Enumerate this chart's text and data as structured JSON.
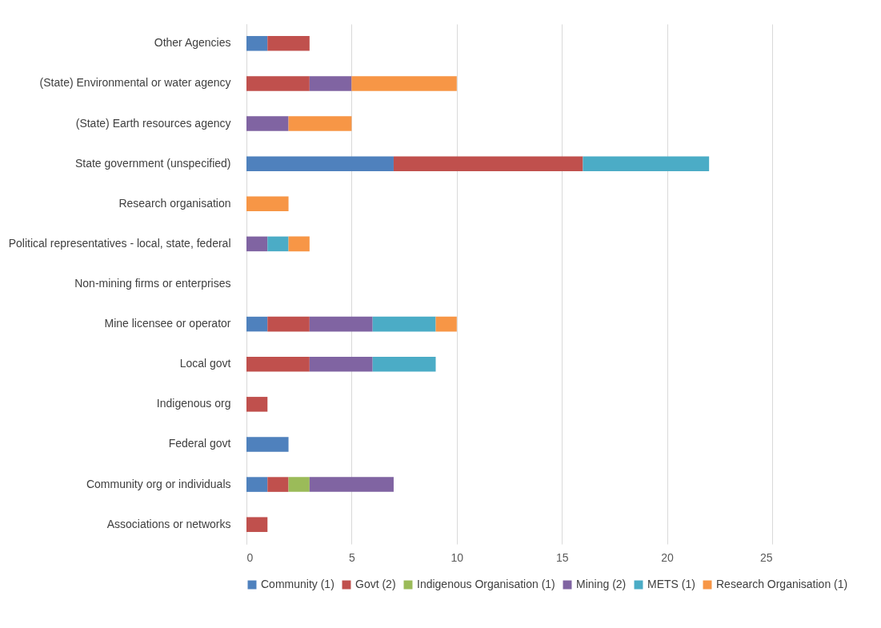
{
  "chart_data": {
    "type": "bar",
    "orientation": "horizontal",
    "stacked": true,
    "categories": [
      "Other Agencies",
      "(State) Environmental or water agency",
      "(State) Earth resources agency",
      "State government (unspecified)",
      "Research organisation",
      "Political representatives - local, state, federal",
      "Non-mining firms or enterprises",
      "Mine licensee or operator",
      "Local govt",
      "Indigenous org",
      "Federal govt",
      "Community org or individuals",
      "Associations or networks"
    ],
    "series": [
      {
        "name": "Community (1)",
        "color": "#4f81bd",
        "values": [
          1,
          null,
          null,
          7,
          null,
          null,
          null,
          1,
          null,
          null,
          2,
          1,
          null
        ]
      },
      {
        "name": "Govt (2)",
        "color": "#c0504d",
        "values": [
          2,
          3,
          null,
          9,
          null,
          null,
          null,
          2,
          3,
          1,
          null,
          1,
          1
        ]
      },
      {
        "name": "Indigenous Organisation (1)",
        "color": "#9bbb59",
        "values": [
          null,
          null,
          null,
          null,
          null,
          null,
          null,
          null,
          null,
          null,
          null,
          1,
          null
        ]
      },
      {
        "name": "Mining (2)",
        "color": "#8064a2",
        "values": [
          null,
          2,
          2,
          null,
          null,
          1,
          null,
          3,
          3,
          null,
          null,
          4,
          null
        ]
      },
      {
        "name": "METS (1)",
        "color": "#4bacc6",
        "values": [
          null,
          null,
          null,
          6,
          null,
          1,
          null,
          3,
          3,
          null,
          null,
          null,
          null
        ]
      },
      {
        "name": "Research Organisation (1)",
        "color": "#f79646",
        "values": [
          null,
          5,
          3,
          null,
          2,
          1,
          null,
          1,
          null,
          null,
          null,
          null,
          null
        ]
      }
    ],
    "xlim": [
      0,
      25
    ],
    "xticks": [
      0,
      5,
      10,
      15,
      20,
      25
    ],
    "grid": "x",
    "legend": "bottom"
  }
}
